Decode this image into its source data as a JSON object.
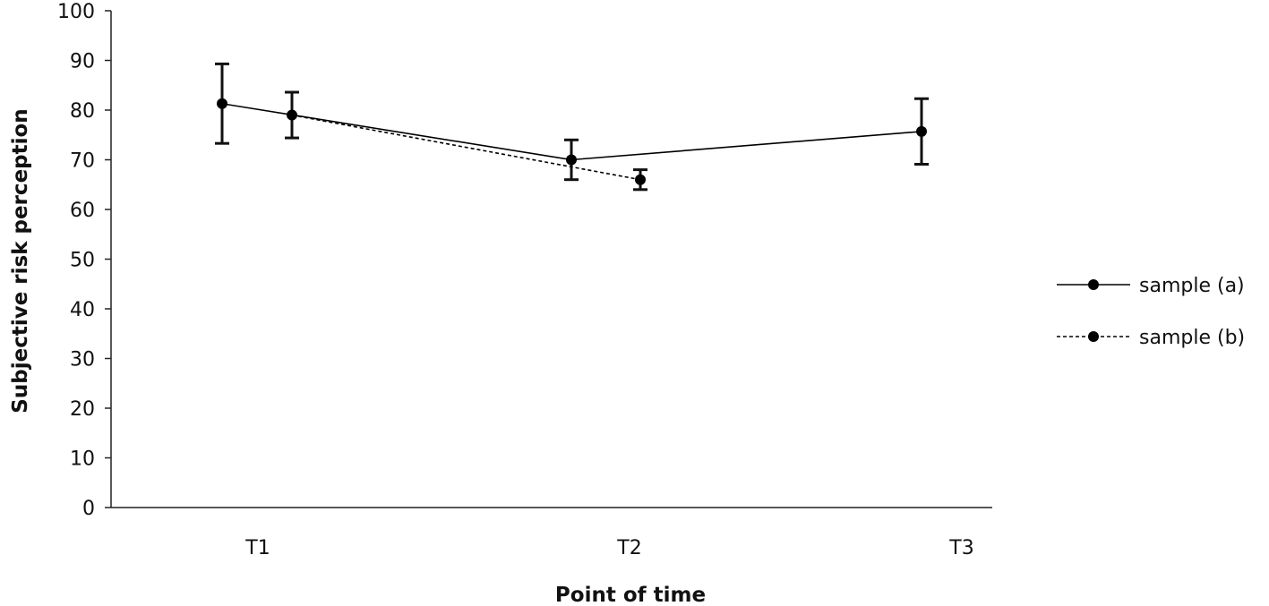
{
  "chart_data": {
    "type": "line",
    "categories": [
      "T1",
      "T2",
      "T3"
    ],
    "xlabel": "Point of time",
    "ylabel": "Subjective risk perception",
    "ylim": [
      0,
      100
    ],
    "yticks": [
      0,
      10,
      20,
      30,
      40,
      50,
      60,
      70,
      80,
      90,
      100
    ],
    "grid": false,
    "legend_position": "right",
    "series": [
      {
        "name": "sample (a)",
        "line_style": "solid",
        "color": "#000000",
        "points": [
          {
            "x": "T1",
            "y": 81.3,
            "err_low": 73.3,
            "err_high": 89.3
          },
          {
            "x": "T2",
            "y": 70.0,
            "err_low": 66.0,
            "err_high": 74.0
          },
          {
            "x": "T3",
            "y": 75.7,
            "err_low": 69.1,
            "err_high": 82.3
          }
        ]
      },
      {
        "name": "sample (b)",
        "line_style": "dashed",
        "color": "#000000",
        "points": [
          {
            "x": "T1",
            "y": 79.0,
            "err_low": 74.4,
            "err_high": 83.6
          },
          {
            "x": "T2",
            "y": 66.0,
            "err_low": 64.0,
            "err_high": 68.0
          }
        ]
      }
    ]
  }
}
